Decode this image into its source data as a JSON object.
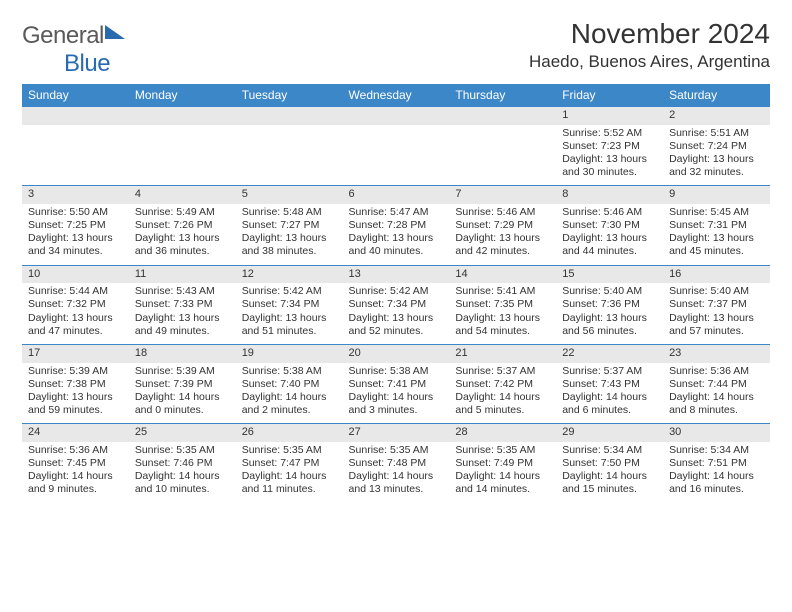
{
  "brand": {
    "text1": "General",
    "text2": "Blue"
  },
  "title": "November 2024",
  "location": "Haedo, Buenos Aires, Argentina",
  "colors": {
    "header_bg": "#3c87c7",
    "header_text": "#ffffff",
    "daynum_bg": "#e8e8e8",
    "border": "#3c87c7",
    "text": "#333333",
    "brand_gray": "#5a5a5a",
    "brand_blue": "#2a6bb0",
    "page_bg": "#ffffff"
  },
  "typography": {
    "month_title_size": 28,
    "location_size": 17,
    "weekday_size": 12,
    "cell_size": 10.5,
    "logo_size": 24
  },
  "weekdays": [
    "Sunday",
    "Monday",
    "Tuesday",
    "Wednesday",
    "Thursday",
    "Friday",
    "Saturday"
  ],
  "weeks": [
    [
      {
        "n": "",
        "sunrise": "",
        "sunset": "",
        "daylight": ""
      },
      {
        "n": "",
        "sunrise": "",
        "sunset": "",
        "daylight": ""
      },
      {
        "n": "",
        "sunrise": "",
        "sunset": "",
        "daylight": ""
      },
      {
        "n": "",
        "sunrise": "",
        "sunset": "",
        "daylight": ""
      },
      {
        "n": "",
        "sunrise": "",
        "sunset": "",
        "daylight": ""
      },
      {
        "n": "1",
        "sunrise": "Sunrise: 5:52 AM",
        "sunset": "Sunset: 7:23 PM",
        "daylight": "Daylight: 13 hours and 30 minutes."
      },
      {
        "n": "2",
        "sunrise": "Sunrise: 5:51 AM",
        "sunset": "Sunset: 7:24 PM",
        "daylight": "Daylight: 13 hours and 32 minutes."
      }
    ],
    [
      {
        "n": "3",
        "sunrise": "Sunrise: 5:50 AM",
        "sunset": "Sunset: 7:25 PM",
        "daylight": "Daylight: 13 hours and 34 minutes."
      },
      {
        "n": "4",
        "sunrise": "Sunrise: 5:49 AM",
        "sunset": "Sunset: 7:26 PM",
        "daylight": "Daylight: 13 hours and 36 minutes."
      },
      {
        "n": "5",
        "sunrise": "Sunrise: 5:48 AM",
        "sunset": "Sunset: 7:27 PM",
        "daylight": "Daylight: 13 hours and 38 minutes."
      },
      {
        "n": "6",
        "sunrise": "Sunrise: 5:47 AM",
        "sunset": "Sunset: 7:28 PM",
        "daylight": "Daylight: 13 hours and 40 minutes."
      },
      {
        "n": "7",
        "sunrise": "Sunrise: 5:46 AM",
        "sunset": "Sunset: 7:29 PM",
        "daylight": "Daylight: 13 hours and 42 minutes."
      },
      {
        "n": "8",
        "sunrise": "Sunrise: 5:46 AM",
        "sunset": "Sunset: 7:30 PM",
        "daylight": "Daylight: 13 hours and 44 minutes."
      },
      {
        "n": "9",
        "sunrise": "Sunrise: 5:45 AM",
        "sunset": "Sunset: 7:31 PM",
        "daylight": "Daylight: 13 hours and 45 minutes."
      }
    ],
    [
      {
        "n": "10",
        "sunrise": "Sunrise: 5:44 AM",
        "sunset": "Sunset: 7:32 PM",
        "daylight": "Daylight: 13 hours and 47 minutes."
      },
      {
        "n": "11",
        "sunrise": "Sunrise: 5:43 AM",
        "sunset": "Sunset: 7:33 PM",
        "daylight": "Daylight: 13 hours and 49 minutes."
      },
      {
        "n": "12",
        "sunrise": "Sunrise: 5:42 AM",
        "sunset": "Sunset: 7:34 PM",
        "daylight": "Daylight: 13 hours and 51 minutes."
      },
      {
        "n": "13",
        "sunrise": "Sunrise: 5:42 AM",
        "sunset": "Sunset: 7:34 PM",
        "daylight": "Daylight: 13 hours and 52 minutes."
      },
      {
        "n": "14",
        "sunrise": "Sunrise: 5:41 AM",
        "sunset": "Sunset: 7:35 PM",
        "daylight": "Daylight: 13 hours and 54 minutes."
      },
      {
        "n": "15",
        "sunrise": "Sunrise: 5:40 AM",
        "sunset": "Sunset: 7:36 PM",
        "daylight": "Daylight: 13 hours and 56 minutes."
      },
      {
        "n": "16",
        "sunrise": "Sunrise: 5:40 AM",
        "sunset": "Sunset: 7:37 PM",
        "daylight": "Daylight: 13 hours and 57 minutes."
      }
    ],
    [
      {
        "n": "17",
        "sunrise": "Sunrise: 5:39 AM",
        "sunset": "Sunset: 7:38 PM",
        "daylight": "Daylight: 13 hours and 59 minutes."
      },
      {
        "n": "18",
        "sunrise": "Sunrise: 5:39 AM",
        "sunset": "Sunset: 7:39 PM",
        "daylight": "Daylight: 14 hours and 0 minutes."
      },
      {
        "n": "19",
        "sunrise": "Sunrise: 5:38 AM",
        "sunset": "Sunset: 7:40 PM",
        "daylight": "Daylight: 14 hours and 2 minutes."
      },
      {
        "n": "20",
        "sunrise": "Sunrise: 5:38 AM",
        "sunset": "Sunset: 7:41 PM",
        "daylight": "Daylight: 14 hours and 3 minutes."
      },
      {
        "n": "21",
        "sunrise": "Sunrise: 5:37 AM",
        "sunset": "Sunset: 7:42 PM",
        "daylight": "Daylight: 14 hours and 5 minutes."
      },
      {
        "n": "22",
        "sunrise": "Sunrise: 5:37 AM",
        "sunset": "Sunset: 7:43 PM",
        "daylight": "Daylight: 14 hours and 6 minutes."
      },
      {
        "n": "23",
        "sunrise": "Sunrise: 5:36 AM",
        "sunset": "Sunset: 7:44 PM",
        "daylight": "Daylight: 14 hours and 8 minutes."
      }
    ],
    [
      {
        "n": "24",
        "sunrise": "Sunrise: 5:36 AM",
        "sunset": "Sunset: 7:45 PM",
        "daylight": "Daylight: 14 hours and 9 minutes."
      },
      {
        "n": "25",
        "sunrise": "Sunrise: 5:35 AM",
        "sunset": "Sunset: 7:46 PM",
        "daylight": "Daylight: 14 hours and 10 minutes."
      },
      {
        "n": "26",
        "sunrise": "Sunrise: 5:35 AM",
        "sunset": "Sunset: 7:47 PM",
        "daylight": "Daylight: 14 hours and 11 minutes."
      },
      {
        "n": "27",
        "sunrise": "Sunrise: 5:35 AM",
        "sunset": "Sunset: 7:48 PM",
        "daylight": "Daylight: 14 hours and 13 minutes."
      },
      {
        "n": "28",
        "sunrise": "Sunrise: 5:35 AM",
        "sunset": "Sunset: 7:49 PM",
        "daylight": "Daylight: 14 hours and 14 minutes."
      },
      {
        "n": "29",
        "sunrise": "Sunrise: 5:34 AM",
        "sunset": "Sunset: 7:50 PM",
        "daylight": "Daylight: 14 hours and 15 minutes."
      },
      {
        "n": "30",
        "sunrise": "Sunrise: 5:34 AM",
        "sunset": "Sunset: 7:51 PM",
        "daylight": "Daylight: 14 hours and 16 minutes."
      }
    ]
  ]
}
